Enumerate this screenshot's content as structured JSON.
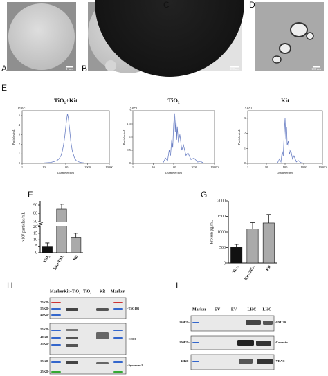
{
  "panel_labels": [
    "A",
    "B",
    "C",
    "D",
    "E",
    "F",
    "G",
    "H",
    "I"
  ],
  "micrographs": {
    "scale_a": "1 μm",
    "scale_c": "200 nm",
    "scale_d": "100 nm"
  },
  "chart_data": [
    {
      "type": "line",
      "title": "TiO₂+Kit",
      "ylabel": "Particles/mL",
      "xlabel": "Diameter/nm",
      "multiplier": "(×10⁶)",
      "log_x": true,
      "color": "#6a7fc4",
      "x": [
        10,
        20,
        30,
        40,
        50,
        60,
        70,
        80,
        90,
        100,
        110,
        120,
        130,
        150,
        170,
        200,
        250,
        300,
        400,
        500,
        700,
        1000
      ],
      "values": [
        0.05,
        0.1,
        0.2,
        0.3,
        0.5,
        0.8,
        1.3,
        2.0,
        2.8,
        3.8,
        4.6,
        5.2,
        4.8,
        3.6,
        2.3,
        1.3,
        0.6,
        0.3,
        0.15,
        0.1,
        0.05,
        0.02
      ],
      "xlim": [
        1,
        10000
      ],
      "xticks": [
        1,
        10,
        100,
        1000,
        10000
      ],
      "ylim": [
        0,
        5.5
      ],
      "yticks": [
        0,
        1,
        2,
        3,
        4,
        5
      ]
    },
    {
      "type": "line",
      "title": "TiO₂",
      "ylabel": "Particles/mL",
      "xlabel": "Diameter/nm",
      "multiplier": "(×10⁶)",
      "log_x": true,
      "color": "#6a7fc4",
      "x": [
        30,
        40,
        50,
        60,
        70,
        80,
        90,
        100,
        110,
        120,
        130,
        140,
        150,
        170,
        200,
        250,
        300,
        400,
        500,
        700,
        1000,
        1500,
        2000,
        3000
      ],
      "values": [
        0.02,
        0.2,
        0.1,
        0.5,
        0.3,
        0.9,
        0.6,
        1.5,
        1.9,
        1.2,
        1.8,
        0.9,
        1.4,
        0.8,
        1.1,
        0.5,
        0.7,
        0.3,
        0.4,
        0.15,
        0.2,
        0.05,
        0.08,
        0.01
      ],
      "xlim": [
        1,
        10000
      ],
      "xticks": [
        1,
        10,
        100,
        1000,
        10000
      ],
      "ylim": [
        0,
        2
      ],
      "yticks": [
        0,
        0.5,
        1,
        1.5,
        2
      ]
    },
    {
      "type": "line",
      "title": "Kit",
      "ylabel": "Particles/mL",
      "xlabel": "Diameter/nm",
      "multiplier": "(×10⁶)",
      "log_x": true,
      "color": "#6a7fc4",
      "x": [
        40,
        50,
        60,
        70,
        80,
        90,
        100,
        110,
        120,
        130,
        150,
        170,
        200,
        250,
        300,
        400,
        500,
        700,
        1000
      ],
      "values": [
        0.05,
        0.3,
        0.1,
        0.8,
        0.5,
        2.0,
        3.0,
        1.6,
        2.4,
        1.2,
        1.5,
        0.6,
        0.9,
        0.3,
        0.5,
        0.1,
        0.2,
        0.05,
        0.02
      ],
      "xlim": [
        1,
        10000
      ],
      "xticks": [
        1,
        10,
        100,
        1000,
        10000
      ],
      "ylim": [
        0,
        3.5
      ],
      "yticks": [
        0,
        1,
        2,
        3
      ]
    },
    {
      "type": "bar",
      "ylabel": "×10⁷ particles/mL",
      "categories": [
        "TiO₂",
        "Kit+TiO₂",
        "Kit"
      ],
      "values": [
        5,
        85,
        12
      ],
      "errors": [
        2.5,
        6,
        3
      ],
      "colors": [
        "#111111",
        "#aaaaaa",
        "#aaaaaa"
      ],
      "ylim": [
        0,
        95
      ],
      "axis_break": [
        20,
        70
      ],
      "yticks": [
        0,
        5,
        10,
        15,
        20,
        70,
        80,
        90
      ]
    },
    {
      "type": "bar",
      "ylabel": "Protein pg/mL",
      "categories": [
        "TiO₂",
        "Kit+TiO₂",
        "Kit"
      ],
      "values": [
        510,
        1100,
        1290
      ],
      "errors": [
        90,
        200,
        270
      ],
      "colors": [
        "#111111",
        "#aaaaaa",
        "#aaaaaa"
      ],
      "ylim": [
        0,
        2000
      ],
      "yticks": [
        0,
        500,
        1000,
        1500,
        2000
      ]
    }
  ],
  "blot_h": {
    "lanes": [
      "Marker",
      "Kit+TiO₂",
      "TiO₂",
      "Kit",
      "Marker"
    ],
    "markers": [
      "75KD-",
      "55KD-",
      "40KD-",
      "55KD-",
      "40KD-",
      "35KD-",
      "35KD-",
      "25KD-"
    ],
    "proteins": [
      "-TSG101",
      "-CD63",
      "-Syntenin-1"
    ]
  },
  "blot_i": {
    "lanes": [
      "Marker",
      "EV",
      "EV",
      "LHC",
      "LHC"
    ],
    "markers": [
      "130KD-",
      "100KD-",
      "40KD-"
    ],
    "proteins": [
      "-GM130",
      "-Calnexin",
      "-VDAC"
    ]
  }
}
